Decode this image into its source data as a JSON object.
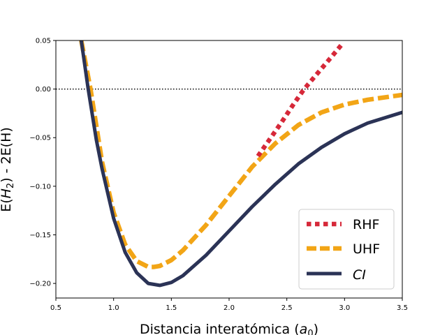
{
  "chart_data": {
    "type": "line",
    "title": "",
    "xlabel": "Distancia interatómica",
    "xlabel_symbol": "a",
    "xlabel_subscript": "0",
    "ylabel_prefix": "E(",
    "ylabel_symbol": "H",
    "ylabel_subscript": "2",
    "ylabel_suffix": ") - 2E(H)",
    "xlim": [
      0.5,
      3.5
    ],
    "ylim": [
      -0.215,
      0.05
    ],
    "xticks": [
      {
        "value": 0.5,
        "label": "0.5"
      },
      {
        "value": 1.0,
        "label": "1.0"
      },
      {
        "value": 1.5,
        "label": "1.5"
      },
      {
        "value": 2.0,
        "label": "2.0"
      },
      {
        "value": 2.5,
        "label": "2.5"
      },
      {
        "value": 3.0,
        "label": "3.0"
      },
      {
        "value": 3.5,
        "label": "3.5"
      }
    ],
    "yticks": [
      {
        "value": 0.05,
        "label": "0.05"
      },
      {
        "value": 0.0,
        "label": "0.00"
      },
      {
        "value": -0.05,
        "label": "−0.05"
      },
      {
        "value": -0.1,
        "label": "−0.10"
      },
      {
        "value": -0.15,
        "label": "−0.15"
      },
      {
        "value": -0.2,
        "label": "−0.20"
      }
    ],
    "reference_line": {
      "y": 0.0,
      "style": "dotted",
      "color": "#000000"
    },
    "legend_placement": "lower-right",
    "grid": false,
    "series": [
      {
        "name": "RHF",
        "style": "dotted",
        "color": "#d62839",
        "x": [
          2.25,
          2.35,
          2.45,
          2.55,
          2.65,
          2.7,
          2.8,
          2.9,
          2.97
        ],
        "y": [
          -0.069,
          -0.052,
          -0.035,
          -0.017,
          0.0,
          0.007,
          0.021,
          0.035,
          0.045
        ]
      },
      {
        "name": "UHF",
        "style": "dashed",
        "color": "#f2a516",
        "x": [
          0.72,
          0.8,
          0.9,
          1.0,
          1.1,
          1.2,
          1.3,
          1.35,
          1.4,
          1.5,
          1.6,
          1.8,
          2.0,
          2.2,
          2.4,
          2.6,
          2.8,
          3.0,
          3.2,
          3.5
        ],
        "y": [
          0.05,
          0.0,
          -0.075,
          -0.127,
          -0.16,
          -0.177,
          -0.183,
          -0.183,
          -0.182,
          -0.176,
          -0.166,
          -0.14,
          -0.11,
          -0.08,
          -0.056,
          -0.037,
          -0.024,
          -0.016,
          -0.011,
          -0.006
        ]
      },
      {
        "name": "CI",
        "style": "solid",
        "color": "#2b3356",
        "x": [
          0.72,
          0.78,
          0.85,
          0.9,
          1.0,
          1.1,
          1.2,
          1.3,
          1.4,
          1.5,
          1.6,
          1.8,
          2.0,
          2.2,
          2.4,
          2.6,
          2.8,
          3.0,
          3.2,
          3.5
        ],
        "y": [
          0.05,
          0.0,
          -0.052,
          -0.082,
          -0.133,
          -0.168,
          -0.189,
          -0.2,
          -0.202,
          -0.199,
          -0.192,
          -0.171,
          -0.146,
          -0.121,
          -0.098,
          -0.077,
          -0.06,
          -0.046,
          -0.035,
          -0.024
        ]
      }
    ]
  }
}
